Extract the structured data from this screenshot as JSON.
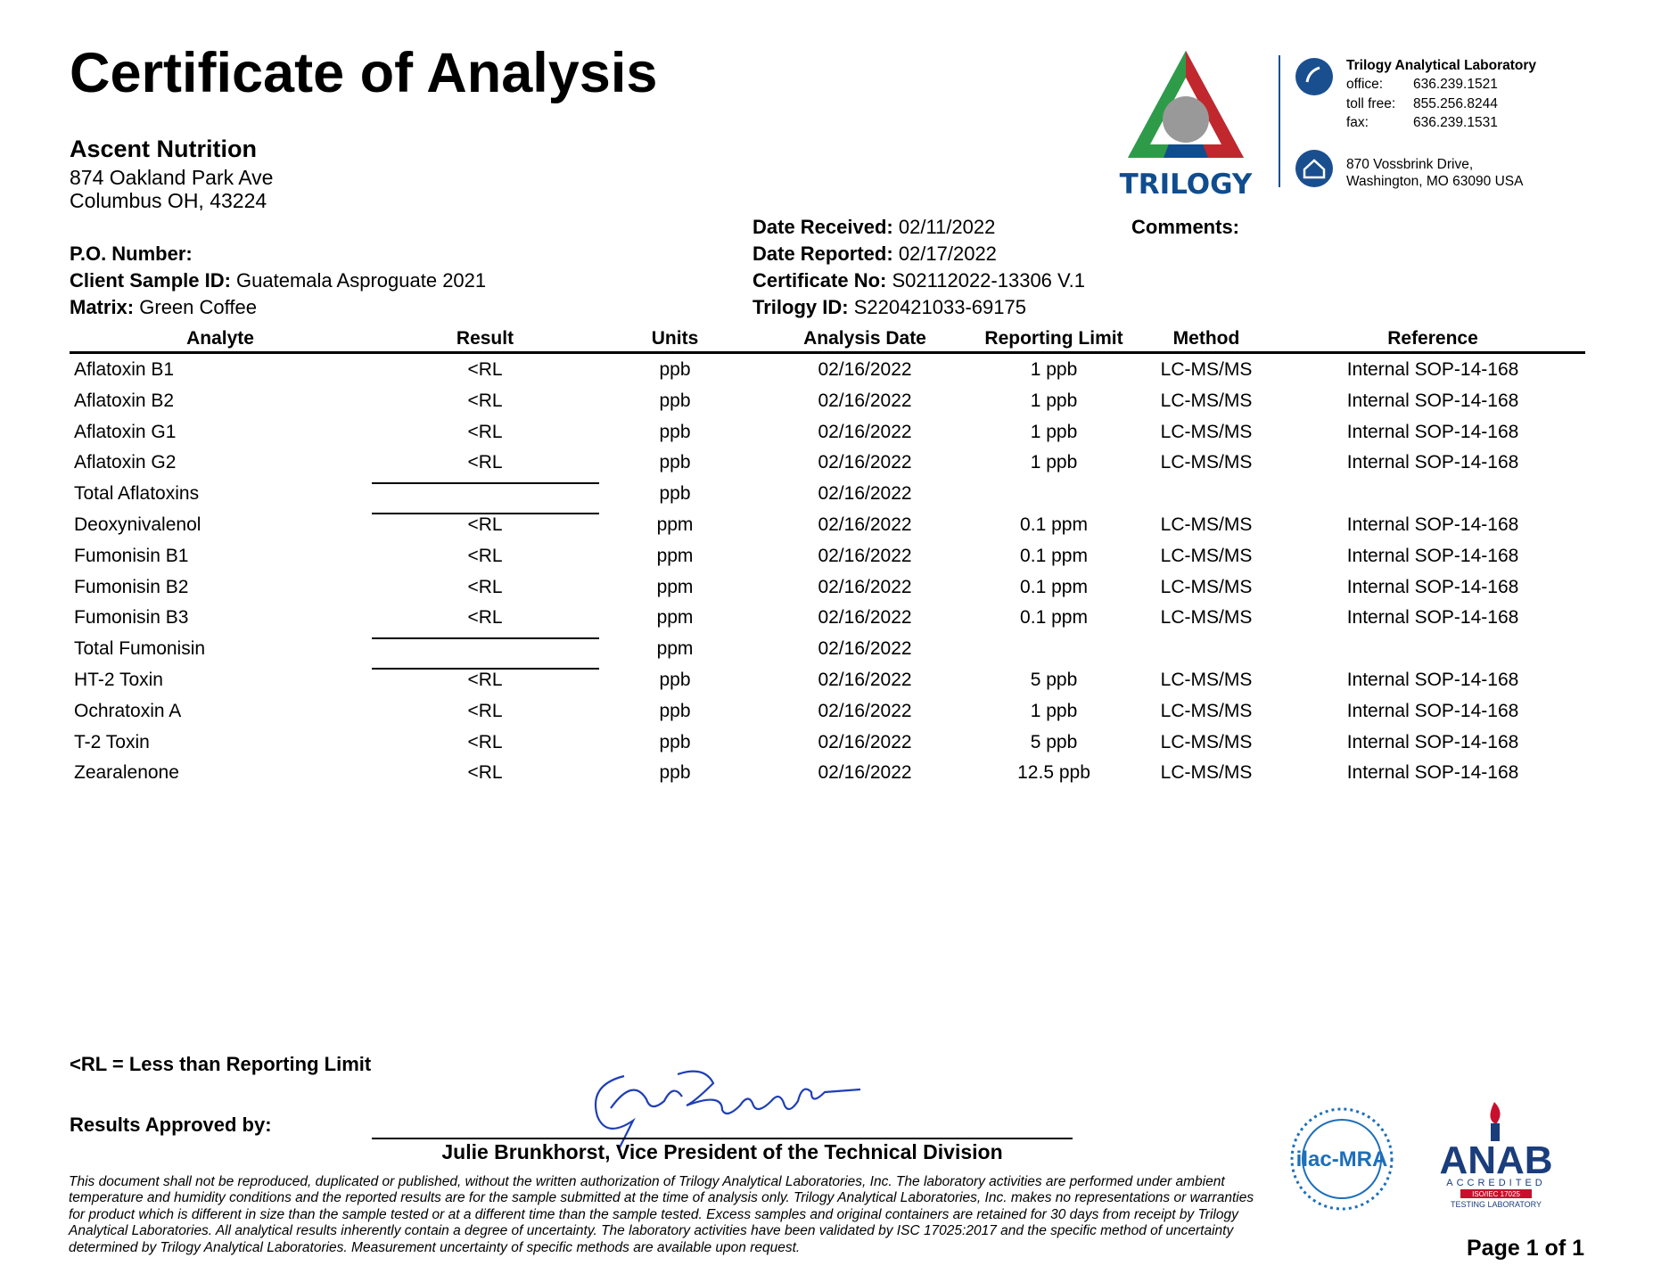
{
  "header": {
    "title": "Certificate of Analysis",
    "client": {
      "name": "Ascent Nutrition",
      "address": [
        "874 Oakland Park Ave",
        "Columbus OH, 43224"
      ]
    },
    "lab": {
      "name": "Trilogy Analytical Laboratory",
      "contacts": [
        {
          "label": "office:",
          "value": "636.239.1521"
        },
        {
          "label": "toll free:",
          "value": "855.256.8244"
        },
        {
          "label": "fax:",
          "value": "636.239.1531"
        }
      ],
      "address": [
        "870 Vossbrink Drive,",
        "Washington, MO 63090 USA"
      ]
    },
    "logo_text": "TRILOGY"
  },
  "sample": {
    "left": [
      {
        "label": "P.O. Number:"
      },
      {
        "label": "Client Sample ID:",
        "value": "Guatemala Asproguate 2021"
      },
      {
        "label": "Matrix:",
        "value": "Green Coffee"
      }
    ],
    "right": [
      {
        "label": "Date Received:",
        "value": "02/11/2022"
      },
      {
        "label": "Date Reported:",
        "value": "02/17/2022"
      },
      {
        "label": "Certificate No:",
        "value": "S02112022-13306 V.1"
      },
      {
        "label": "Trilogy ID:",
        "value": "S220421033-69175"
      }
    ],
    "comments_label": "Comments:"
  },
  "table": {
    "columns": [
      "Analyte",
      "Result",
      "Units",
      "Analysis Date",
      "Reporting Limit",
      "Method",
      "Reference"
    ],
    "rows": [
      [
        "Aflatoxin B1",
        "<RL",
        "ppb",
        "02/16/2022",
        "1 ppb",
        "LC-MS/MS",
        "Internal SOP-14-168"
      ],
      [
        "Aflatoxin B2",
        "<RL",
        "ppb",
        "02/16/2022",
        "1 ppb",
        "LC-MS/MS",
        "Internal SOP-14-168"
      ],
      [
        "Aflatoxin G1",
        "<RL",
        "ppb",
        "02/16/2022",
        "1 ppb",
        "LC-MS/MS",
        "Internal SOP-14-168"
      ],
      [
        "Aflatoxin G2",
        "<RL",
        "ppb",
        "02/16/2022",
        "1 ppb",
        "LC-MS/MS",
        "Internal SOP-14-168"
      ],
      [
        "Total Aflatoxins",
        null,
        "ppb",
        "02/16/2022",
        null,
        null,
        null
      ],
      [
        "Deoxynivalenol",
        "<RL",
        "ppm",
        "02/16/2022",
        "0.1 ppm",
        "LC-MS/MS",
        "Internal SOP-14-168"
      ],
      [
        "Fumonisin B1",
        "<RL",
        "ppm",
        "02/16/2022",
        "0.1 ppm",
        "LC-MS/MS",
        "Internal SOP-14-168"
      ],
      [
        "Fumonisin B2",
        "<RL",
        "ppm",
        "02/16/2022",
        "0.1 ppm",
        "LC-MS/MS",
        "Internal SOP-14-168"
      ],
      [
        "Fumonisin B3",
        "<RL",
        "ppm",
        "02/16/2022",
        "0.1 ppm",
        "LC-MS/MS",
        "Internal SOP-14-168"
      ],
      [
        "Total Fumonisin",
        null,
        "ppm",
        "02/16/2022",
        null,
        null,
        null
      ],
      [
        "HT-2 Toxin",
        "<RL",
        "ppb",
        "02/16/2022",
        "5 ppb",
        "LC-MS/MS",
        "Internal SOP-14-168"
      ],
      [
        "Ochratoxin A",
        "<RL",
        "ppb",
        "02/16/2022",
        "1 ppb",
        "LC-MS/MS",
        "Internal SOP-14-168"
      ],
      [
        "T-2 Toxin",
        "<RL",
        "ppb",
        "02/16/2022",
        "5 ppb",
        "LC-MS/MS",
        "Internal SOP-14-168"
      ],
      [
        "Zearalenone",
        "<RL",
        "ppb",
        "02/16/2022",
        "12.5 ppb",
        "LC-MS/MS",
        "Internal SOP-14-168"
      ]
    ]
  },
  "footer": {
    "legend": "<RL = Less than Reporting Limit",
    "approved_label": "Results Approved by:",
    "signatory": "Julie Brunkhorst, Vice President of the Technical Division",
    "disclaimer": "This document shall not be reproduced, duplicated or published, without the written authorization of Trilogy Analytical Laboratories, Inc. The laboratory activities are performed under ambient temperature and humidity conditions and the reported results are for the sample submitted at the time of analysis only. Trilogy Analytical Laboratories, Inc. makes no representations or warranties for product which is different in size than the sample tested or at a different time than the sample tested. Excess samples and original containers are retained for 30 days from receipt by Trilogy Analytical Laboratories. All analytical results inherently contain a degree of uncertainty. The laboratory activities have been validated by ISC 17025:2017 and the specific method of uncertainty determined by Trilogy Analytical Laboratories. Measurement uncertainty of specific methods are available upon request.",
    "page": "Page 1 of 1",
    "ilac": "ilac-MRA",
    "anab": "ANAB",
    "anab_sub": "ACCREDITED",
    "anab_iso": "ISO/IEC 17025",
    "anab_lab": "TESTING LABORATORY"
  }
}
